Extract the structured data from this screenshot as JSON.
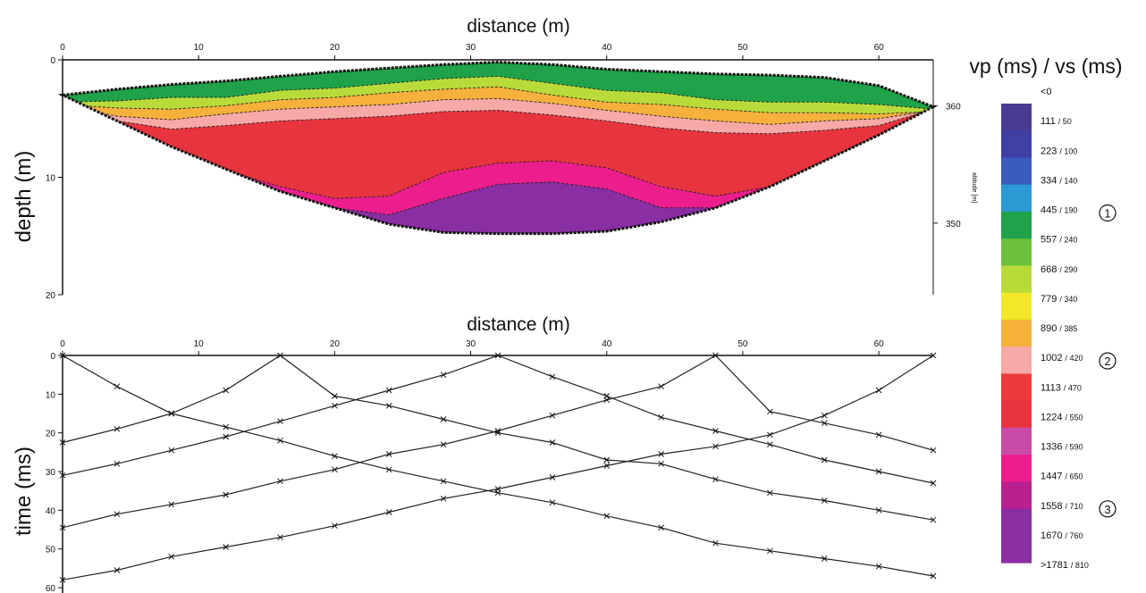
{
  "chart_data": [
    {
      "type": "heatmap",
      "title": "distance (m)",
      "xlabel": "distance (m)",
      "ylabel": "depth (m)",
      "xlim": [
        0,
        64
      ],
      "ylim": [
        0,
        20
      ],
      "x_ticks": [
        "0",
        "10",
        "20",
        "30",
        "40",
        "50",
        "60"
      ],
      "y_ticks": [
        "0",
        "10",
        "20"
      ],
      "right_axis": {
        "label": "altitude [m]",
        "ticks": [
          {
            "label": "360",
            "depth": 2
          },
          {
            "label": "350",
            "depth": 12
          }
        ]
      },
      "colorbar": {
        "title": "vp (ms) / vs (ms)",
        "labels": [
          {
            "vp": "<0",
            "vs": ""
          },
          {
            "vp": "111",
            "vs": "/ 50"
          },
          {
            "vp": "223",
            "vs": "/ 100"
          },
          {
            "vp": "334",
            "vs": "/ 140"
          },
          {
            "vp": "445",
            "vs": "/ 190"
          },
          {
            "vp": "557",
            "vs": "/ 240"
          },
          {
            "vp": "668",
            "vs": "/ 290"
          },
          {
            "vp": "779",
            "vs": "/ 340"
          },
          {
            "vp": "890",
            "vs": "/ 385"
          },
          {
            "vp": "1002",
            "vs": "/ 420"
          },
          {
            "vp": "1113",
            "vs": "/ 470"
          },
          {
            "vp": "1224",
            "vs": "/ 550"
          },
          {
            "vp": "1336",
            "vs": "/ 590"
          },
          {
            "vp": "1447",
            "vs": "/ 650"
          },
          {
            "vp": "1558",
            "vs": "/ 710"
          },
          {
            "vp": "1670",
            "vs": "/ 760"
          },
          {
            "vp": ">1781",
            "vs": "/ 810"
          }
        ],
        "colors": [
          "#4b3a93",
          "#3f3fa6",
          "#3a5cc0",
          "#2a9ad4",
          "#1fa24a",
          "#6cc13b",
          "#b8db3a",
          "#f2e829",
          "#f5b13b",
          "#f6a9a6",
          "#ed3b3b",
          "#e8343e",
          "#c94ba7",
          "#ec1e8e",
          "#b8208f",
          "#8a2ea3",
          "#8a2ea3"
        ],
        "markers": [
          {
            "label": "1",
            "at": 4
          },
          {
            "label": "2",
            "at": 9
          },
          {
            "label": "3",
            "at": 14
          }
        ]
      },
      "section": {
        "top_surface": [
          [
            0,
            3
          ],
          [
            4,
            2.5
          ],
          [
            8,
            2.1
          ],
          [
            12,
            1.8
          ],
          [
            16,
            1.4
          ],
          [
            20,
            1
          ],
          [
            24,
            0.7
          ],
          [
            28,
            0.4
          ],
          [
            32,
            0.2
          ],
          [
            36,
            0.4
          ],
          [
            40,
            0.8
          ],
          [
            44,
            1
          ],
          [
            48,
            1.2
          ],
          [
            52,
            1.3
          ],
          [
            56,
            1.5
          ],
          [
            60,
            2.2
          ],
          [
            64,
            4
          ]
        ],
        "bottom_surface": [
          [
            0,
            3
          ],
          [
            4,
            5.2
          ],
          [
            8,
            7.4
          ],
          [
            12,
            9.3
          ],
          [
            16,
            11.2
          ],
          [
            20,
            12.6
          ],
          [
            24,
            14
          ],
          [
            28,
            14.7
          ],
          [
            32,
            14.8
          ],
          [
            36,
            14.8
          ],
          [
            40,
            14.6
          ],
          [
            44,
            13.8
          ],
          [
            48,
            12.6
          ],
          [
            52,
            10.8
          ],
          [
            56,
            8.6
          ],
          [
            60,
            6.4
          ],
          [
            64,
            4
          ]
        ],
        "layers": [
          {
            "vp": 445,
            "bottom": [
              [
                0,
                3.6
              ],
              [
                4,
                3.5
              ],
              [
                8,
                3.2
              ],
              [
                12,
                3.2
              ],
              [
                16,
                2.6
              ],
              [
                20,
                2.4
              ],
              [
                24,
                2.0
              ],
              [
                28,
                1.6
              ],
              [
                32,
                1.4
              ],
              [
                36,
                2.0
              ],
              [
                40,
                2.6
              ],
              [
                44,
                2.8
              ],
              [
                48,
                3.4
              ],
              [
                52,
                3.6
              ],
              [
                56,
                3.6
              ],
              [
                60,
                3.8
              ],
              [
                64,
                4.2
              ]
            ]
          },
          {
            "vp": 668,
            "bottom": [
              [
                0,
                3.8
              ],
              [
                4,
                4.1
              ],
              [
                8,
                4.2
              ],
              [
                12,
                3.9
              ],
              [
                16,
                3.4
              ],
              [
                20,
                3.2
              ],
              [
                24,
                2.8
              ],
              [
                28,
                2.5
              ],
              [
                32,
                2.3
              ],
              [
                36,
                3.0
              ],
              [
                40,
                3.6
              ],
              [
                44,
                3.8
              ],
              [
                48,
                4.2
              ],
              [
                52,
                4.5
              ],
              [
                56,
                4.5
              ],
              [
                60,
                4.6
              ],
              [
                64,
                4.4
              ]
            ]
          },
          {
            "vp": 890,
            "bottom": [
              [
                0,
                3.9
              ],
              [
                4,
                4.8
              ],
              [
                8,
                5.1
              ],
              [
                12,
                4.6
              ],
              [
                16,
                4.2
              ],
              [
                20,
                4.0
              ],
              [
                24,
                3.8
              ],
              [
                28,
                3.4
              ],
              [
                32,
                3.3
              ],
              [
                36,
                3.7
              ],
              [
                40,
                4.3
              ],
              [
                44,
                4.8
              ],
              [
                48,
                5.2
              ],
              [
                52,
                5.5
              ],
              [
                56,
                5.2
              ],
              [
                60,
                5.0
              ],
              [
                64,
                4.3
              ]
            ]
          },
          {
            "vp": 1002,
            "bottom": [
              [
                0,
                3.9
              ],
              [
                4,
                5.2
              ],
              [
                8,
                5.9
              ],
              [
                12,
                5.6
              ],
              [
                16,
                5.2
              ],
              [
                20,
                5.0
              ],
              [
                24,
                4.8
              ],
              [
                28,
                4.4
              ],
              [
                32,
                4.3
              ],
              [
                36,
                4.7
              ],
              [
                40,
                5.2
              ],
              [
                44,
                5.8
              ],
              [
                48,
                6.2
              ],
              [
                52,
                6.3
              ],
              [
                56,
                6.0
              ],
              [
                60,
                5.6
              ],
              [
                64,
                4.2
              ]
            ]
          },
          {
            "vp": 1224,
            "bottom": [
              [
                0,
                3.9
              ],
              [
                4,
                5.3
              ],
              [
                8,
                7.5
              ],
              [
                12,
                9.4
              ],
              [
                16,
                10.8
              ],
              [
                20,
                11.8
              ],
              [
                24,
                11.6
              ],
              [
                28,
                9.6
              ],
              [
                32,
                8.8
              ],
              [
                36,
                8.6
              ],
              [
                40,
                9.2
              ],
              [
                44,
                10.8
              ],
              [
                48,
                11.6
              ],
              [
                52,
                10.8
              ],
              [
                56,
                8.6
              ],
              [
                60,
                6.4
              ],
              [
                64,
                4.1
              ]
            ]
          },
          {
            "vp": 1447,
            "bottom": [
              [
                0,
                3.9
              ],
              [
                4,
                5.3
              ],
              [
                8,
                7.5
              ],
              [
                12,
                9.4
              ],
              [
                16,
                11.2
              ],
              [
                20,
                12.6
              ],
              [
                24,
                13.2
              ],
              [
                28,
                11.8
              ],
              [
                32,
                10.6
              ],
              [
                36,
                10.4
              ],
              [
                40,
                11.0
              ],
              [
                44,
                12.6
              ],
              [
                48,
                12.6
              ],
              [
                52,
                10.8
              ],
              [
                56,
                8.6
              ],
              [
                60,
                6.4
              ],
              [
                64,
                4.1
              ]
            ]
          },
          {
            "vp": 1670,
            "bottom": [
              [
                0,
                3.9
              ],
              [
                4,
                5.3
              ],
              [
                8,
                7.5
              ],
              [
                12,
                9.4
              ],
              [
                16,
                11.2
              ],
              [
                20,
                12.6
              ],
              [
                24,
                14.0
              ],
              [
                28,
                14.7
              ],
              [
                32,
                14.8
              ],
              [
                36,
                14.8
              ],
              [
                40,
                14.6
              ],
              [
                44,
                13.8
              ],
              [
                48,
                12.6
              ],
              [
                52,
                10.8
              ],
              [
                56,
                8.6
              ],
              [
                60,
                6.4
              ],
              [
                64,
                4.1
              ]
            ]
          }
        ]
      }
    },
    {
      "type": "line",
      "title": "distance (m)",
      "xlabel": "distance (m)",
      "ylabel": "time (ms)",
      "xlim": [
        0,
        64
      ],
      "ylim": [
        0,
        60
      ],
      "x_ticks": [
        "0",
        "10",
        "20",
        "30",
        "40",
        "50",
        "60"
      ],
      "y_ticks": [
        "0",
        "10",
        "20",
        "30",
        "40",
        "50",
        "60"
      ],
      "series": [
        {
          "x": [
            0,
            4,
            8,
            12,
            16,
            20,
            24,
            28,
            32,
            36,
            40,
            44,
            48,
            52,
            56,
            60,
            64
          ],
          "values": [
            0,
            8,
            15,
            18.5,
            22,
            26,
            29.5,
            32.5,
            35.5,
            38,
            41.5,
            44.5,
            48.5,
            50.5,
            52.5,
            54.5,
            57
          ]
        },
        {
          "x": [
            0,
            4,
            8,
            12,
            16,
            20,
            24,
            28,
            32,
            36,
            40,
            44,
            48,
            52,
            56,
            60,
            64
          ],
          "values": [
            22.5,
            19,
            15,
            9,
            0,
            10.5,
            13,
            16.5,
            20,
            22.5,
            27,
            28,
            32,
            35.5,
            37.5,
            40,
            42.5
          ]
        },
        {
          "x": [
            0,
            4,
            8,
            12,
            16,
            20,
            24,
            28,
            32,
            36,
            40,
            44,
            48,
            52,
            56,
            60,
            64
          ],
          "values": [
            31,
            28,
            24.5,
            21,
            17,
            13,
            9,
            5,
            0,
            5.5,
            10.5,
            16,
            19.5,
            23,
            27,
            30,
            33
          ]
        },
        {
          "x": [
            0,
            4,
            8,
            12,
            16,
            20,
            24,
            28,
            32,
            36,
            40,
            44,
            48,
            52,
            56,
            60,
            64
          ],
          "values": [
            44.5,
            41,
            38.5,
            36,
            32.5,
            29.5,
            25.5,
            23,
            19.5,
            15.5,
            11.5,
            8,
            0,
            14.5,
            17.5,
            20.5,
            24.5
          ]
        },
        {
          "x": [
            0,
            4,
            8,
            12,
            16,
            20,
            24,
            28,
            32,
            36,
            40,
            44,
            48,
            52,
            56,
            60,
            64
          ],
          "values": [
            58,
            55.5,
            52,
            49.5,
            47,
            44,
            40.5,
            37,
            34.5,
            31.5,
            28.5,
            25.5,
            23.5,
            20.5,
            15.5,
            9,
            0
          ]
        }
      ],
      "grid": false
    }
  ]
}
